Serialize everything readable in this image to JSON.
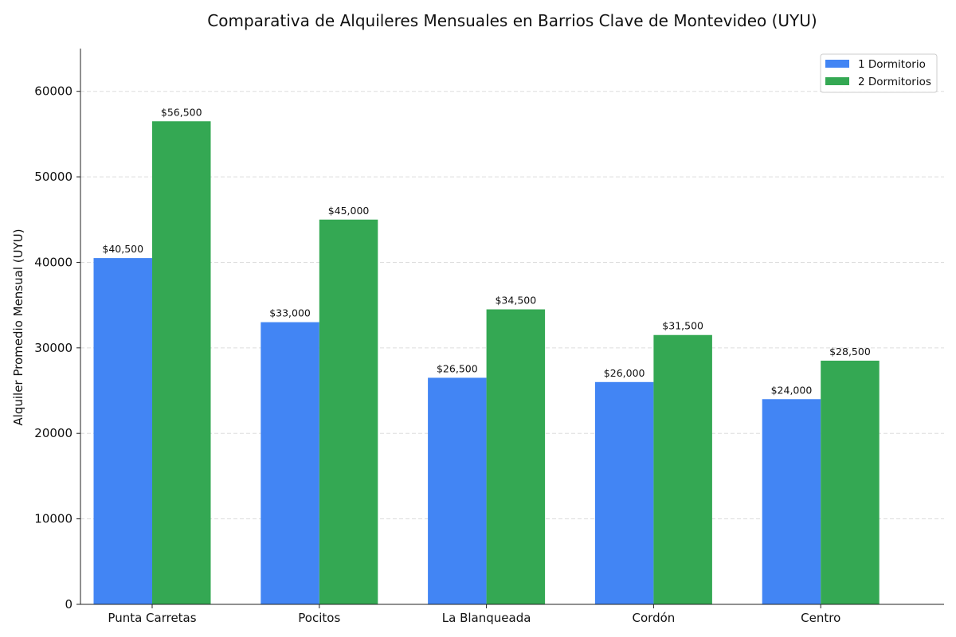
{
  "chart_data": {
    "type": "bar",
    "title": "Comparativa de Alquileres Mensuales en Barrios Clave de Montevideo (UYU)",
    "xlabel": "",
    "ylabel": "Alquiler Promedio Mensual (UYU)",
    "categories": [
      "Punta Carretas",
      "Pocitos",
      "La Blanqueada",
      "Cordón",
      "Centro"
    ],
    "series": [
      {
        "name": "1 Dormitorio",
        "color": "#4285F4",
        "values": [
          40500,
          33000,
          26500,
          26000,
          24000
        ],
        "labels": [
          "$40,500",
          "$33,000",
          "$26,500",
          "$26,000",
          "$24,000"
        ]
      },
      {
        "name": "2 Dormitorios",
        "color": "#34A853",
        "values": [
          56500,
          45000,
          34500,
          31500,
          28500
        ],
        "labels": [
          "$56,500",
          "$45,000",
          "$34,500",
          "$31,500",
          "$28,500"
        ]
      }
    ],
    "ylim": [
      0,
      65000
    ],
    "yticks": [
      0,
      10000,
      20000,
      30000,
      40000,
      50000,
      60000
    ],
    "ytick_labels": [
      "0",
      "10000",
      "20000",
      "30000",
      "40000",
      "50000",
      "60000"
    ],
    "grid": "horizontal dashed",
    "legend_position": "top-right"
  }
}
